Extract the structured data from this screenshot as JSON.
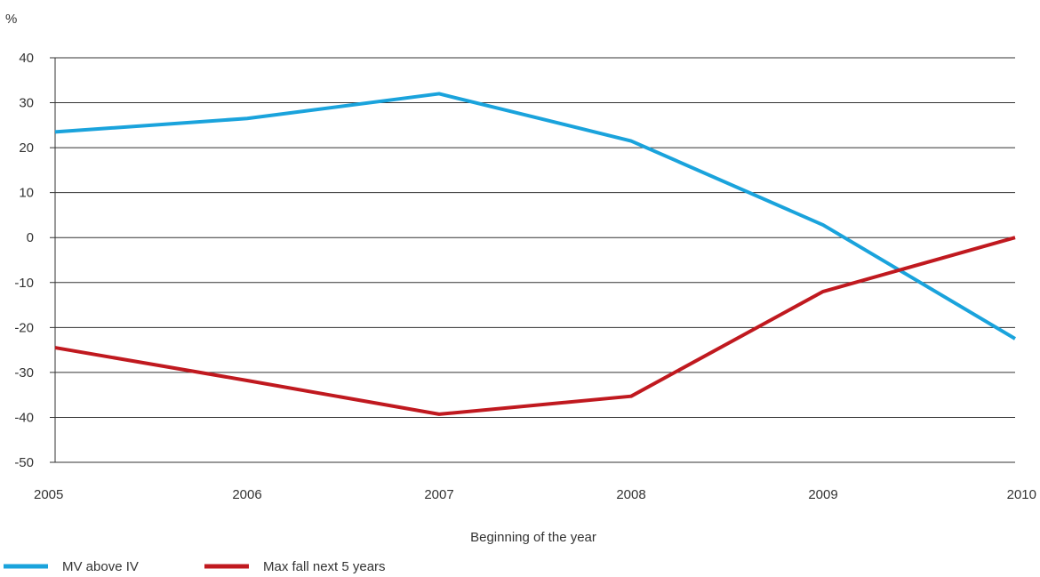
{
  "chart_data": {
    "type": "line",
    "ylabel": "%",
    "xlabel": "Beginning of the year",
    "x": [
      "2005",
      "2006",
      "2007",
      "2008",
      "2009",
      "2010"
    ],
    "ylim": [
      -50,
      40
    ],
    "yticks": [
      "40",
      "30",
      "20",
      "10",
      "0",
      "-10",
      "-20",
      "-30",
      "-40",
      "-50"
    ],
    "grid": true,
    "legend_position": "bottom-left",
    "series": [
      {
        "name": "MV above IV",
        "color": "#1aa3dc",
        "values": [
          23.5,
          26.5,
          32,
          21.5,
          2.8,
          -22.5
        ]
      },
      {
        "name": "Max fall next 5 years",
        "color": "#c0191f",
        "values": [
          -24.5,
          -31.8,
          -39.3,
          -35.3,
          -12,
          0
        ]
      }
    ]
  }
}
